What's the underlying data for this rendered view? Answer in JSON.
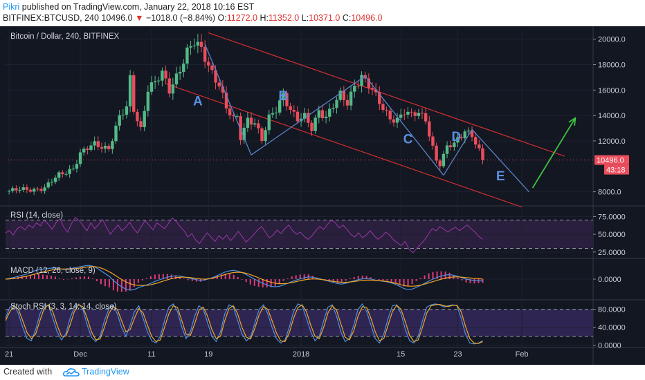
{
  "header": {
    "author": "Pikri",
    "published": " published on TradingView.com, January 22, 2018 10:16 EST",
    "symbol_line": "BITFINEX:BTCUSD, 240  10496.0",
    "change_arrow": "▼",
    "change": "−1018.0 (−8.84%)",
    "o_label": "O:",
    "o_value": "11272.0",
    "h_label": "H:",
    "h_value": "11352.0",
    "l_label": "L:",
    "l_value": "10371.0",
    "c_label": "C:",
    "c_value": "10496.0"
  },
  "footer": {
    "created_with": "Created with",
    "brand": "TradingView"
  },
  "chart_data": [
    {
      "type": "candlestick",
      "title": "Bitcoin / Dollar, 240, BITFINEX",
      "ylim": [
        7000,
        20800
      ],
      "yticks": [
        "20000.0",
        "18000.0",
        "16000.0",
        "14000.0",
        "12000.0",
        "8000.0"
      ],
      "yticks_values": [
        20000,
        18000,
        16000,
        14000,
        12000,
        8000
      ],
      "last_price": "10496.0",
      "countdown": "43:18",
      "last_price_value": 10496,
      "x_ticks": [
        "21",
        "Dec",
        "11",
        "19",
        "2018",
        "15",
        "23",
        "Feb"
      ],
      "x_ticks_days": [
        -10,
        0,
        10,
        18,
        31,
        45,
        53,
        62
      ],
      "x_range_days": [
        -10.5,
        72
      ],
      "price_path": [
        [
          -10.5,
          8050
        ],
        [
          -8,
          8150
        ],
        [
          -5,
          8300
        ],
        [
          -3,
          9300
        ],
        [
          -1,
          9900
        ],
        [
          0,
          11000
        ],
        [
          2,
          11700
        ],
        [
          4,
          11500
        ],
        [
          5.5,
          13800
        ],
        [
          6.5,
          14500
        ],
        [
          7,
          16800
        ],
        [
          7.5,
          14500
        ],
        [
          8.5,
          13000
        ],
        [
          9.5,
          16200
        ],
        [
          10.5,
          16500
        ],
        [
          11.5,
          17200
        ],
        [
          12.5,
          16000
        ],
        [
          14,
          17800
        ],
        [
          15,
          19000
        ],
        [
          16,
          19600
        ],
        [
          17,
          19100
        ],
        [
          18.5,
          17500
        ],
        [
          19.5,
          16500
        ],
        [
          20.5,
          14500
        ],
        [
          21.5,
          13600
        ],
        [
          22,
          13800
        ],
        [
          22.5,
          12300
        ],
        [
          23.5,
          13800
        ],
        [
          24.5,
          13500
        ],
        [
          25.5,
          12000
        ],
        [
          26.5,
          13700
        ],
        [
          27.5,
          14500
        ],
        [
          28.5,
          15800
        ],
        [
          29.5,
          14500
        ],
        [
          30.5,
          13600
        ],
        [
          31.5,
          13800
        ],
        [
          32.5,
          13000
        ],
        [
          33.5,
          14500
        ],
        [
          34.5,
          13900
        ],
        [
          35.5,
          14700
        ],
        [
          36.5,
          15500
        ],
        [
          37.5,
          15000
        ],
        [
          38.5,
          16500
        ],
        [
          39.5,
          17100
        ],
        [
          40.5,
          16300
        ],
        [
          41.5,
          15400
        ],
        [
          42.5,
          14600
        ],
        [
          43.5,
          13900
        ],
        [
          44.5,
          13700
        ],
        [
          45.5,
          14200
        ],
        [
          46.5,
          13900
        ],
        [
          47.5,
          14300
        ],
        [
          48.5,
          13800
        ],
        [
          49.5,
          11500
        ],
        [
          50,
          10400
        ],
        [
          50.5,
          10100
        ],
        [
          51.5,
          11400
        ],
        [
          52.5,
          11900
        ],
        [
          53.5,
          12500
        ],
        [
          54,
          13000
        ],
        [
          55,
          12300
        ],
        [
          55.5,
          11800
        ],
        [
          56.5,
          10496
        ]
      ],
      "channel_lines": [
        {
          "name": "upper",
          "from": [
            18,
            20500
          ],
          "to": [
            68,
            10800
          ]
        },
        {
          "name": "lower",
          "from": [
            12,
            16500
          ],
          "to": [
            62,
            6800
          ]
        }
      ],
      "wave_lines": [
        {
          "from": [
            17.5,
            19600
          ],
          "to": [
            24,
            10900
          ]
        },
        {
          "from": [
            24,
            10900
          ],
          "to": [
            40,
            17100
          ]
        },
        {
          "from": [
            40,
            17100
          ],
          "to": [
            51,
            9300
          ]
        },
        {
          "from": [
            51,
            9300
          ],
          "to": [
            55,
            12900
          ]
        },
        {
          "from": [
            55,
            12900
          ],
          "to": [
            63,
            8000
          ]
        }
      ],
      "projection_arrow": {
        "from": [
          63.5,
          8300
        ],
        "to": [
          69.5,
          13800
        ]
      },
      "annotations": [
        {
          "text": "A",
          "x": 16.5,
          "y": 14800
        },
        {
          "text": "B",
          "x": 28.5,
          "y": 15200
        },
        {
          "text": "C",
          "x": 46,
          "y": 11800
        },
        {
          "text": "D",
          "x": 52.8,
          "y": 12000
        },
        {
          "text": "E",
          "x": 59,
          "y": 8900
        }
      ]
    },
    {
      "type": "line",
      "title": "RSI (14, close)",
      "ylim": [
        18,
        88
      ],
      "yticks": [
        "75.0000",
        "50.0000",
        "25.0000"
      ],
      "yticks_values": [
        75,
        50,
        25
      ],
      "band": [
        30,
        70
      ],
      "values": [
        52,
        55,
        49,
        58,
        61,
        56,
        63,
        59,
        66,
        62,
        70,
        64,
        57,
        66,
        72,
        60,
        53,
        65,
        74,
        69,
        62,
        55,
        66,
        58,
        64,
        71,
        60,
        50,
        57,
        63,
        55,
        60,
        67,
        58,
        52,
        61,
        69,
        63,
        56,
        66,
        62,
        58,
        65,
        73,
        68,
        61,
        55,
        46,
        51,
        42,
        37,
        45,
        52,
        46,
        40,
        48,
        43,
        49,
        41,
        47,
        54,
        47,
        39,
        44,
        50,
        56,
        61,
        53,
        45,
        49,
        56,
        51,
        58,
        63,
        55,
        50,
        53,
        47,
        43,
        48,
        55,
        61,
        57,
        64,
        70,
        66,
        59,
        63,
        57,
        50,
        46,
        52,
        45,
        49,
        55,
        48,
        43,
        47,
        53,
        49,
        42,
        38,
        34,
        40,
        29,
        24,
        30,
        36,
        42,
        50,
        58,
        55,
        61,
        57,
        53,
        57,
        60,
        55,
        59,
        63,
        58,
        53,
        47,
        43
      ]
    },
    {
      "type": "line",
      "title": "MACD (12, 26, close, 9)",
      "ylim": [
        -1400,
        1400
      ],
      "yticks": [
        "0.0000"
      ],
      "yticks_values": [
        0
      ],
      "series": [
        {
          "values": [
            0,
            60,
            120,
            200,
            280,
            360,
            480,
            600,
            680,
            720,
            760,
            800,
            820,
            760,
            700,
            720,
            780,
            840,
            900,
            960,
            1000,
            940,
            800,
            600,
            400,
            200,
            -100,
            -350,
            -560,
            -720,
            -800,
            -760,
            -620,
            -520,
            -420,
            -300,
            -160,
            -60,
            40,
            140,
            200,
            240,
            220,
            160,
            90,
            30,
            -40,
            -90,
            -60,
            20,
            120,
            260,
            400,
            520,
            600,
            640,
            580,
            480,
            340,
            160,
            0,
            -150,
            -300,
            -420,
            -520,
            -560,
            -520,
            -420,
            -300,
            -180,
            -70,
            20,
            100,
            160,
            140,
            80,
            0,
            -80,
            -160,
            -240,
            -320,
            -360,
            -300,
            -200,
            -120,
            -40,
            20,
            40,
            10,
            -60,
            -120,
            -160,
            -200,
            -280,
            -380,
            -520,
            -680,
            -760,
            -720,
            -600,
            -460,
            -300,
            -140,
            0,
            120,
            220,
            300,
            320,
            280,
            200,
            100,
            0,
            -60,
            -100,
            -120,
            -130
          ]
        },
        {
          "values": [
            0,
            20,
            50,
            90,
            140,
            200,
            270,
            350,
            430,
            500,
            570,
            640,
            700,
            730,
            730,
            730,
            740,
            760,
            790,
            830,
            880,
            910,
            900,
            840,
            740,
            600,
            440,
            250,
            60,
            -120,
            -270,
            -380,
            -440,
            -460,
            -460,
            -440,
            -380,
            -300,
            -210,
            -110,
            -20,
            60,
            120,
            140,
            140,
            120,
            80,
            40,
            10,
            0,
            30,
            90,
            170,
            260,
            350,
            430,
            480,
            500,
            480,
            420,
            330,
            220,
            100,
            -20,
            -130,
            -220,
            -290,
            -330,
            -330,
            -310,
            -260,
            -200,
            -130,
            -70,
            -20,
            10,
            10,
            -10,
            -50,
            -90,
            -140,
            -190,
            -220,
            -230,
            -220,
            -190,
            -150,
            -110,
            -80,
            -70,
            -80,
            -100,
            -120,
            -150,
            -190,
            -250,
            -330,
            -410,
            -480,
            -510,
            -510,
            -480,
            -420,
            -340,
            -250,
            -160,
            -70,
            10,
            80,
            130,
            160,
            160,
            140,
            110,
            80,
            50,
            30,
            10
          ]
        }
      ]
    },
    {
      "type": "line",
      "title": "Stoch RSI (3, 3, 14, 14, close)",
      "ylim": [
        -5,
        98
      ],
      "yticks": [
        "80.0000",
        "40.0000",
        "0.0000"
      ],
      "yticks_values": [
        80,
        40,
        0
      ],
      "band": [
        20,
        80
      ],
      "series": [
        {
          "values": [
            60,
            85,
            90,
            70,
            40,
            15,
            10,
            35,
            70,
            90,
            88,
            60,
            30,
            12,
            25,
            60,
            85,
            92,
            80,
            45,
            18,
            8,
            20,
            55,
            80,
            90,
            70,
            40,
            20,
            45,
            75,
            88,
            60,
            30,
            10,
            5,
            20,
            55,
            85,
            92,
            75,
            40,
            15,
            30,
            65,
            88,
            80,
            50,
            20,
            8,
            30,
            70,
            90,
            85,
            55,
            25,
            10,
            18,
            50,
            80,
            90,
            70,
            40,
            15,
            5,
            12,
            40,
            75,
            92,
            88,
            60,
            30,
            10,
            20,
            55,
            85,
            90,
            65,
            30,
            8,
            15,
            45,
            80,
            92,
            75,
            45,
            15,
            5,
            25,
            60,
            88,
            90,
            70,
            35,
            10,
            5,
            20,
            55,
            85,
            90,
            92,
            90,
            85,
            88,
            90,
            88,
            60,
            25,
            5,
            3,
            5,
            10
          ]
        },
        {
          "values": [
            55,
            75,
            88,
            80,
            55,
            28,
            15,
            25,
            55,
            82,
            90,
            75,
            45,
            20,
            20,
            45,
            75,
            90,
            86,
            60,
            30,
            12,
            14,
            40,
            70,
            86,
            80,
            55,
            30,
            35,
            60,
            82,
            72,
            45,
            20,
            8,
            12,
            40,
            70,
            88,
            84,
            55,
            25,
            22,
            48,
            78,
            85,
            65,
            35,
            15,
            20,
            55,
            82,
            88,
            70,
            40,
            18,
            14,
            38,
            68,
            86,
            80,
            55,
            28,
            10,
            8,
            28,
            60,
            84,
            90,
            75,
            45,
            20,
            15,
            40,
            72,
            88,
            78,
            48,
            18,
            12,
            32,
            65,
            86,
            84,
            60,
            30,
            10,
            15,
            45,
            75,
            89,
            80,
            52,
            22,
            8,
            12,
            40,
            72,
            88,
            90,
            91,
            88,
            86,
            89,
            89,
            75,
            42,
            15,
            5,
            4,
            8
          ]
        }
      ]
    }
  ]
}
